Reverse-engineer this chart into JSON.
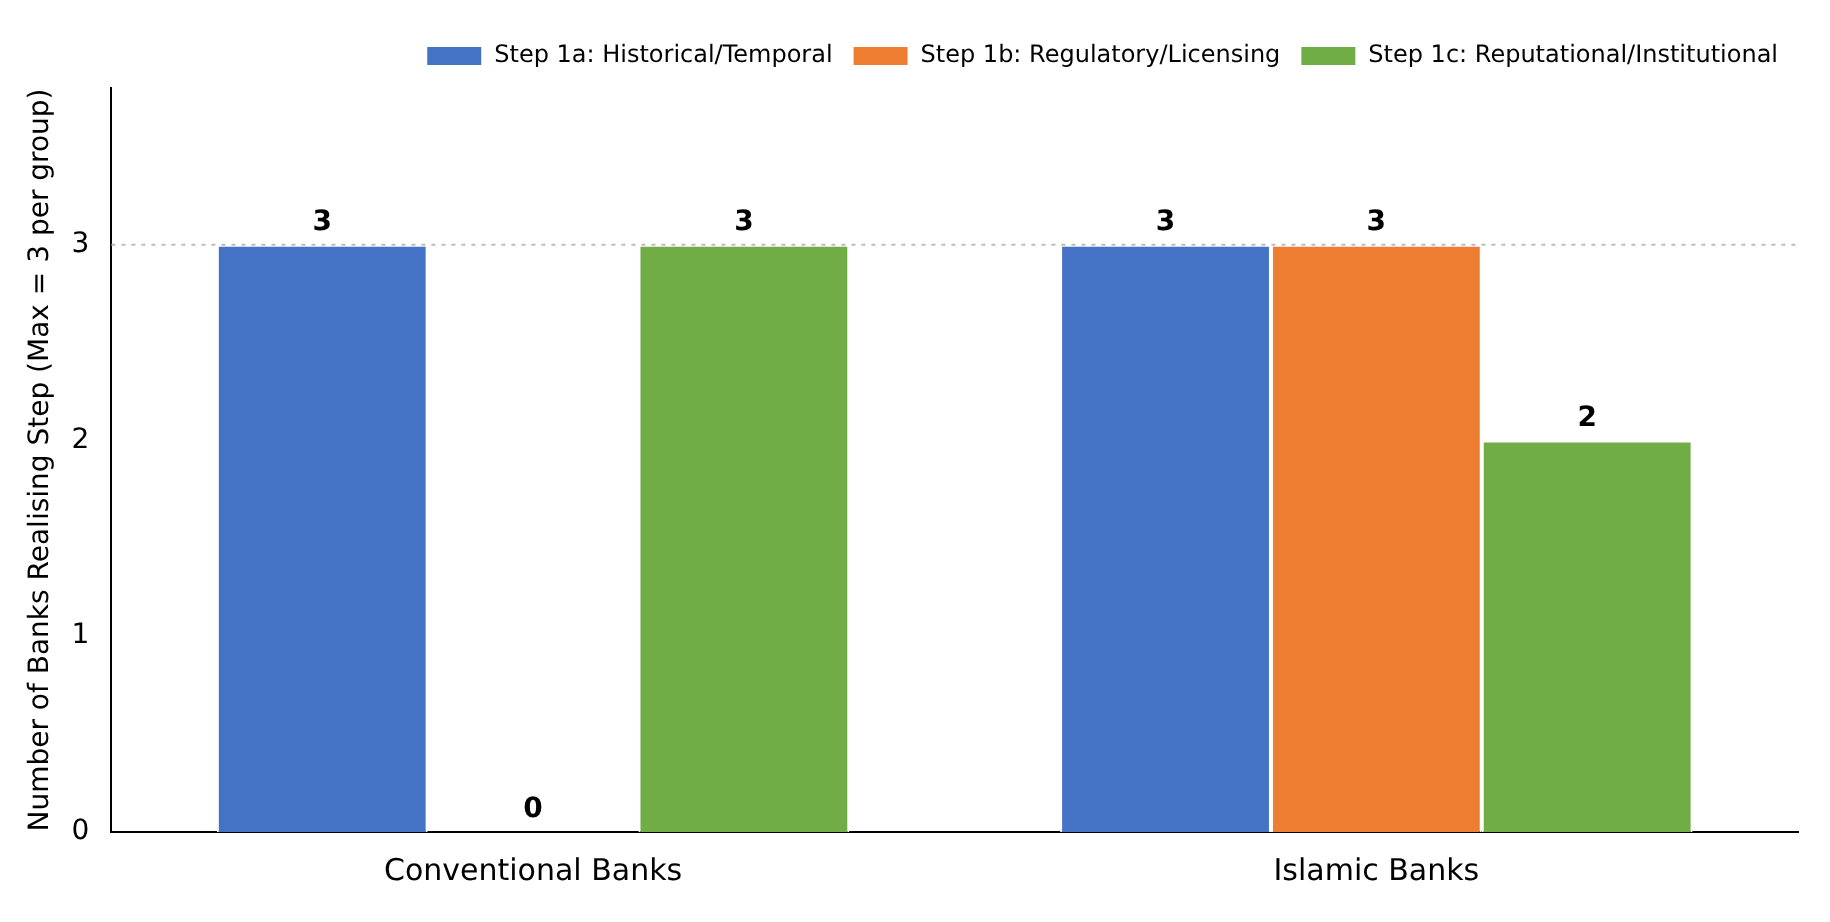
{
  "chart_data": {
    "type": "bar",
    "ylabel": "Number of Banks Realising Step (Max = 3 per group)",
    "categories": [
      "Conventional Banks",
      "Islamic Banks"
    ],
    "series": [
      {
        "name": "Step 1a: Historical/Temporal",
        "color": "#4472c4",
        "values": [
          3,
          3
        ]
      },
      {
        "name": "Step 1b: Regulatory/Licensing",
        "color": "#ed7d31",
        "values": [
          0,
          3
        ]
      },
      {
        "name": "Step 1c: Reputational/Institutional",
        "color": "#70ad47",
        "values": [
          3,
          2
        ]
      }
    ],
    "ylim": [
      0,
      3.8
    ],
    "yticks": [
      0,
      1,
      2,
      3
    ],
    "grid": false,
    "legend": "top right",
    "data_labels": true,
    "ref_lines": [
      {
        "axis": "y",
        "value": 3,
        "color": "#bbbbbb",
        "line_style": "dotted"
      }
    ]
  }
}
